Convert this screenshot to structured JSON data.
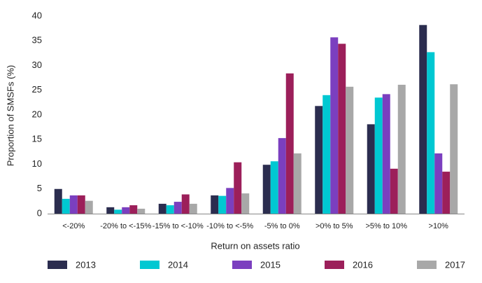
{
  "chart_data": {
    "type": "bar",
    "y_label": "Proportion of SMSFs (%)",
    "x_label": "Return on assets ratio",
    "categories": [
      "<-20%",
      "-20% to <-15%",
      "-15% to <-10%",
      "-10% to <-5%",
      "-5% to 0%",
      ">0% to 5%",
      ">5% to 10%",
      ">10%"
    ],
    "series": [
      {
        "name": "2013",
        "color": "#2b2d4f",
        "values": [
          5.0,
          1.3,
          2.0,
          3.7,
          9.9,
          21.8,
          18.1,
          38.2
        ]
      },
      {
        "name": "2014",
        "color": "#00c8d2",
        "values": [
          3.0,
          0.8,
          1.7,
          3.6,
          10.6,
          24.0,
          23.5,
          32.7
        ]
      },
      {
        "name": "2015",
        "color": "#7b3fbf",
        "values": [
          3.7,
          1.3,
          2.4,
          5.2,
          15.3,
          35.7,
          24.2,
          12.2
        ]
      },
      {
        "name": "2016",
        "color": "#9c1f5a",
        "values": [
          3.7,
          1.7,
          3.9,
          10.4,
          28.4,
          34.4,
          9.1,
          8.5
        ]
      },
      {
        "name": "2017",
        "color": "#a8a8a8",
        "values": [
          2.6,
          1.0,
          2.0,
          4.1,
          12.2,
          25.7,
          26.1,
          26.2
        ]
      }
    ],
    "ylim": [
      0,
      40
    ],
    "yticks": [
      0,
      5,
      10,
      15,
      20,
      25,
      30,
      35,
      40
    ],
    "grid": false
  }
}
